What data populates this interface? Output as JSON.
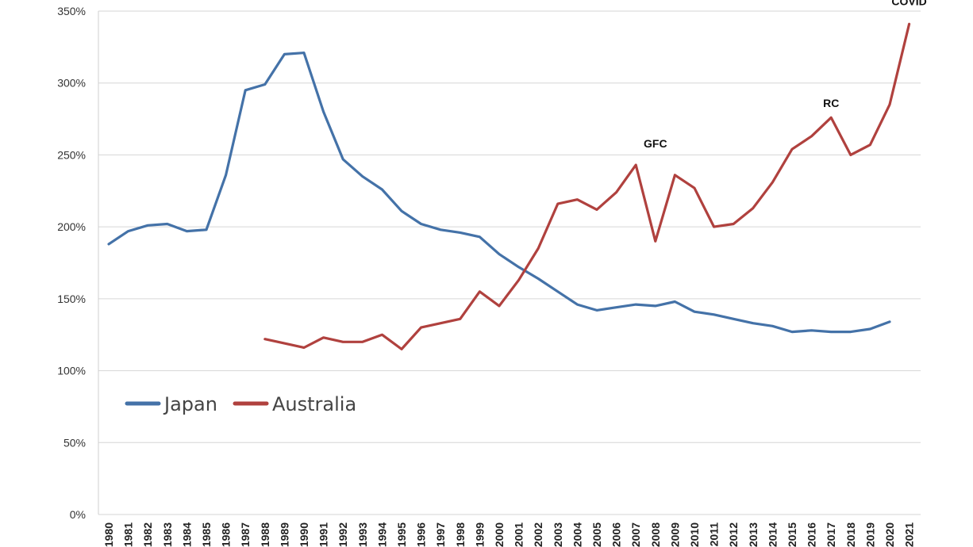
{
  "chart_data": {
    "type": "line",
    "title": "",
    "xlabel": "",
    "ylabel": "",
    "ylim": [
      0,
      350
    ],
    "yticks": [
      "0%",
      "50%",
      "100%",
      "150%",
      "200%",
      "250%",
      "300%",
      "350%"
    ],
    "ytick_values": [
      0,
      50,
      100,
      150,
      200,
      250,
      300,
      350
    ],
    "categories": [
      "1980",
      "1981",
      "1982",
      "1983",
      "1984",
      "1985",
      "1986",
      "1987",
      "1988",
      "1989",
      "1990",
      "1991",
      "1992",
      "1993",
      "1994",
      "1995",
      "1996",
      "1997",
      "1998",
      "1999",
      "2000",
      "2001",
      "2002",
      "2003",
      "2004",
      "2005",
      "2006",
      "2007",
      "2008",
      "2009",
      "2010",
      "2011",
      "2012",
      "2013",
      "2014",
      "2015",
      "2016",
      "2017",
      "2018",
      "2019",
      "2020",
      "2021"
    ],
    "grid": true,
    "legend_position": "middle-left",
    "series": [
      {
        "name": "Japan",
        "color": "#4472a8",
        "values": [
          188,
          197,
          201,
          202,
          197,
          198,
          236,
          295,
          299,
          320,
          321,
          280,
          247,
          235,
          226,
          211,
          202,
          198,
          196,
          193,
          181,
          172,
          164,
          155,
          146,
          142,
          144,
          146,
          145,
          148,
          141,
          139,
          136,
          133,
          131,
          127,
          128,
          127,
          127,
          129,
          134,
          null
        ]
      },
      {
        "name": "Australia",
        "color": "#b0413e",
        "values": [
          null,
          null,
          null,
          null,
          null,
          null,
          null,
          null,
          122,
          119,
          116,
          123,
          120,
          120,
          125,
          115,
          130,
          133,
          136,
          155,
          145,
          163,
          185,
          216,
          219,
          212,
          224,
          243,
          190,
          236,
          227,
          200,
          202,
          213,
          231,
          254,
          263,
          276,
          250,
          257,
          285,
          341
        ]
      }
    ],
    "annotations": [
      {
        "text": "GFC",
        "x": "2008",
        "y": 258
      },
      {
        "text": "RC",
        "x": "2017",
        "y": 286
      },
      {
        "text": "COVID",
        "x": "2021",
        "y": 357
      }
    ]
  }
}
